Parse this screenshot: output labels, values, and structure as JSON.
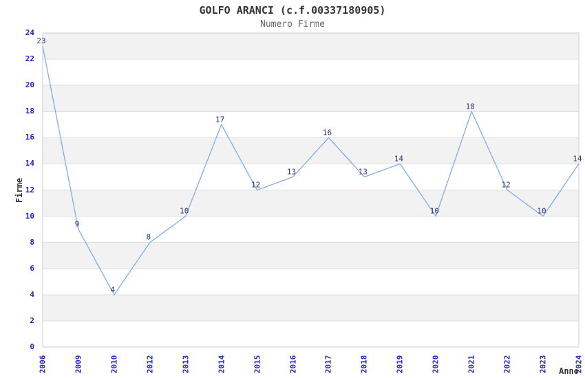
{
  "chart_data": {
    "type": "line",
    "title": "GOLFO ARANCI (c.f.00337180905)",
    "subtitle": "Numero Firme",
    "xlabel": "Anno",
    "ylabel": "Firme",
    "categories": [
      "2006",
      "2009",
      "2010",
      "2012",
      "2013",
      "2014",
      "2015",
      "2016",
      "2017",
      "2018",
      "2019",
      "2020",
      "2021",
      "2022",
      "2023",
      "2024"
    ],
    "values": [
      23,
      9,
      4,
      8,
      10,
      17,
      12,
      13,
      16,
      13,
      14,
      10,
      18,
      12,
      10,
      14
    ],
    "ylim": [
      0,
      24
    ],
    "yticks": [
      0,
      2,
      4,
      6,
      8,
      10,
      12,
      14,
      16,
      18,
      20,
      22,
      24
    ],
    "grid": "horizontal-bands",
    "legend": "none",
    "colors": {
      "title": "#333333",
      "subtitle": "#666666",
      "axis_label": "#333333",
      "tick_label": "#2222cc",
      "data_label": "#333377",
      "line": "#7caee8",
      "band_even": "#ffffff",
      "band_odd": "#f2f2f2",
      "gridline": "#dddddd",
      "plot_border": "#cccccc",
      "background": "#ffffff"
    }
  }
}
